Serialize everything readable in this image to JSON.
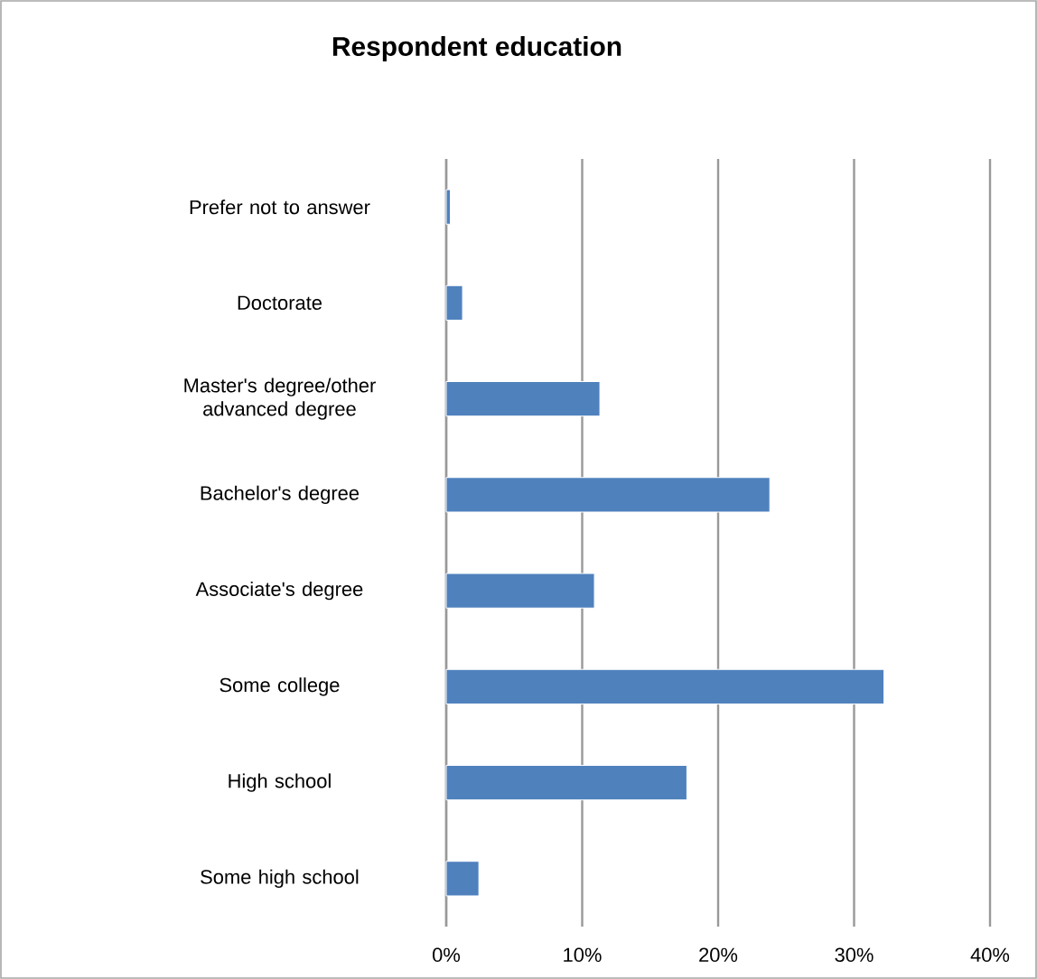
{
  "chart_data": {
    "type": "bar",
    "orientation": "horizontal",
    "title": "Respondent education",
    "categories": [
      "Prefer not to answer",
      "Doctorate",
      "Master's degree/other advanced degree",
      "Bachelor's degree",
      "Associate's degree",
      "Some college",
      "High school",
      "Some high school"
    ],
    "values": [
      0.3,
      1.2,
      11.3,
      23.8,
      10.9,
      32.2,
      17.7,
      2.4
    ],
    "color": "#4f81bd",
    "xlim": [
      0,
      40
    ],
    "xticks": [
      {
        "value": 0,
        "label": "0%"
      },
      {
        "value": 10,
        "label": "10%"
      },
      {
        "value": 20,
        "label": "20%"
      },
      {
        "value": 30,
        "label": "30%"
      },
      {
        "value": 40,
        "label": "40%"
      }
    ],
    "grid": "x"
  }
}
